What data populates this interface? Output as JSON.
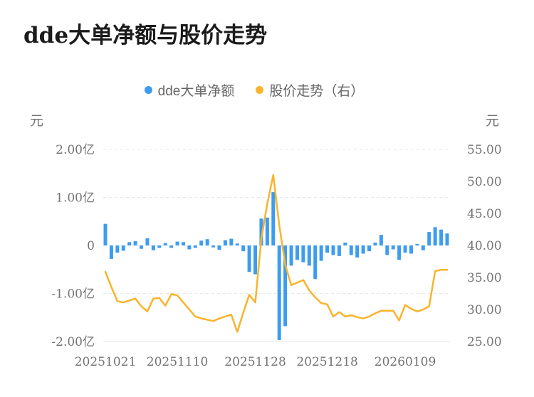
{
  "page": {
    "title": "dde大单净额与股价走势"
  },
  "legend": [
    {
      "label": "dde大单净额",
      "color": "#3d9cf0"
    },
    {
      "label": "股价走势（右）",
      "color": "#f9b42c"
    }
  ],
  "chart_data": {
    "type": "bar",
    "title": "dde大单净额与股价走势",
    "note": "combo chart: blue bars = dde large-order net amount (left axis, 亿元), yellow line = stock price (right axis, 元)",
    "n_points": 58,
    "x_tick_labels": [
      "20251021",
      "20251110",
      "20251128",
      "20251218",
      "20260109"
    ],
    "x_tick_indices": [
      0,
      12,
      25,
      37,
      50
    ],
    "left_axis": {
      "unit": "元",
      "ticks": [
        "2.00亿",
        "1.00亿",
        "0",
        "-1.00亿",
        "-2.00亿"
      ],
      "tick_values_yi": [
        2,
        1,
        0,
        -1,
        -2
      ],
      "range_yi": [
        -2,
        2
      ]
    },
    "right_axis": {
      "unit": "元",
      "ticks": [
        "55.00",
        "50.00",
        "45.00",
        "40.00",
        "35.00",
        "30.00",
        "25.00"
      ],
      "tick_values": [
        55,
        50,
        45,
        40,
        35,
        30,
        25
      ],
      "range": [
        25,
        55
      ]
    },
    "grid": {
      "horizontal": "dashed",
      "color": "#e7e7e7"
    },
    "legend_position": "top-center",
    "series": [
      {
        "name": "dde大单净额",
        "type": "bar",
        "y_axis": "left",
        "unit": "亿元",
        "color": "#3d9cf0",
        "values": [
          0.45,
          -0.28,
          -0.15,
          -0.11,
          0.07,
          0.09,
          -0.07,
          0.15,
          -0.1,
          -0.05,
          0.05,
          -0.05,
          0.08,
          0.07,
          -0.08,
          -0.05,
          0.1,
          0.13,
          -0.04,
          -0.09,
          0.11,
          0.14,
          0.04,
          -0.12,
          -0.55,
          -0.6,
          0.56,
          0.58,
          1.11,
          -1.97,
          -1.68,
          -0.42,
          -0.3,
          -0.35,
          -0.42,
          -0.7,
          -0.32,
          -0.15,
          -0.2,
          -0.22,
          0.06,
          -0.2,
          -0.25,
          -0.17,
          -0.12,
          0.06,
          0.22,
          -0.2,
          -0.08,
          -0.3,
          -0.15,
          -0.17,
          0.03,
          -0.1,
          0.28,
          0.38,
          0.33,
          0.25
        ]
      },
      {
        "name": "股价走势（右）",
        "type": "line",
        "y_axis": "right",
        "unit": "元",
        "color": "#f9b42c",
        "values": [
          35.9,
          33.5,
          31.3,
          31.1,
          31.4,
          31.7,
          30.5,
          29.7,
          31.7,
          31.8,
          30.6,
          32.4,
          32.2,
          31.1,
          30.0,
          28.9,
          28.6,
          28.4,
          28.2,
          28.6,
          28.9,
          29.2,
          26.5,
          29.5,
          32.3,
          31.1,
          41.0,
          46.5,
          51.0,
          43.2,
          37.0,
          33.8,
          34.2,
          34.6,
          33.0,
          31.9,
          31.0,
          30.8,
          28.9,
          29.6,
          28.9,
          29.1,
          28.8,
          28.6,
          28.9,
          29.4,
          29.8,
          29.8,
          29.8,
          28.3,
          30.7,
          30.1,
          29.7,
          30.0,
          30.5,
          36.0,
          36.2,
          36.2
        ]
      }
    ]
  }
}
